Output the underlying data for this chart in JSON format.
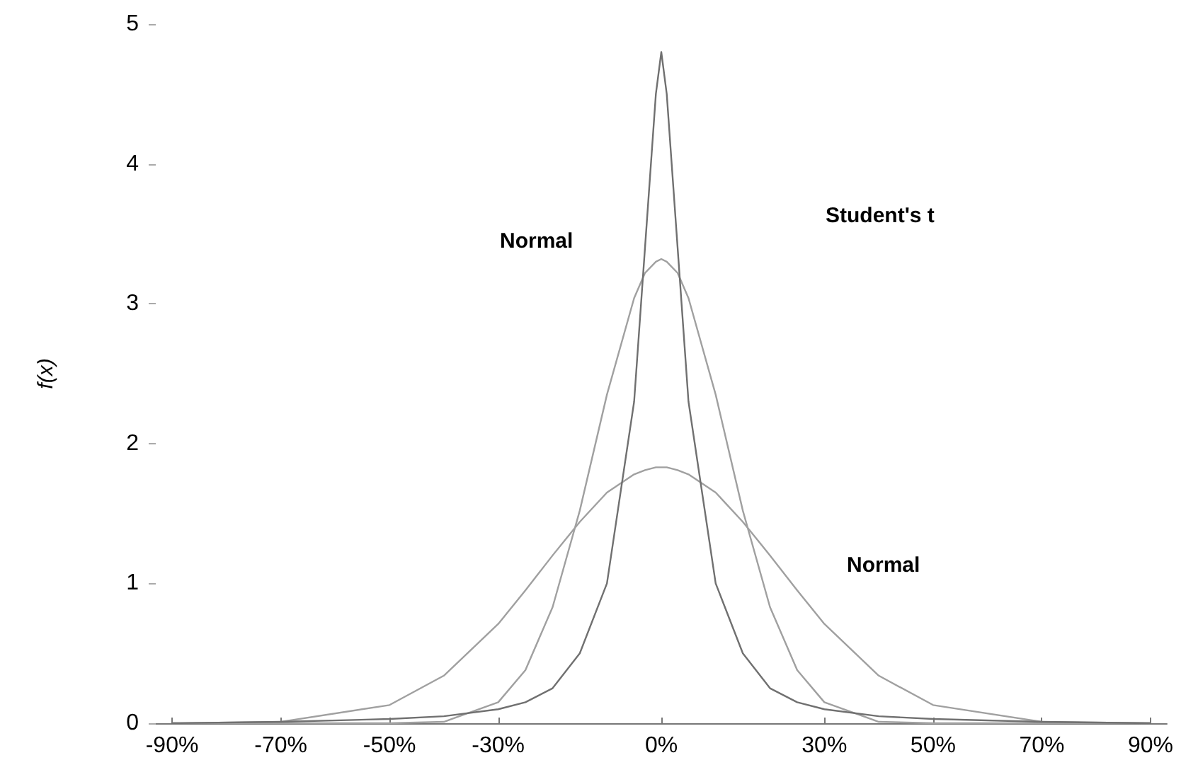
{
  "chart_data": {
    "type": "line",
    "ylabel": "f(x)",
    "x": [
      -90,
      -70,
      -50,
      -40,
      -30,
      -25,
      -20,
      -15,
      -10,
      -5,
      -3,
      -1,
      0,
      1,
      3,
      5,
      10,
      15,
      20,
      25,
      30,
      40,
      50,
      70,
      90
    ],
    "series": [
      {
        "color": "#a0a0a0",
        "values": [
          0,
          0.01,
          0.13,
          0.34,
          0.71,
          0.95,
          1.2,
          1.44,
          1.65,
          1.78,
          1.81,
          1.83,
          1.83,
          1.83,
          1.81,
          1.78,
          1.65,
          1.44,
          1.2,
          0.95,
          0.71,
          0.34,
          0.13,
          0.01,
          0
        ]
      },
      {
        "color": "#a0a0a0",
        "values": [
          0,
          0,
          0,
          0.01,
          0.15,
          0.38,
          0.83,
          1.52,
          2.35,
          3.04,
          3.22,
          3.3,
          3.32,
          3.3,
          3.22,
          3.04,
          2.35,
          1.52,
          0.83,
          0.38,
          0.15,
          0.01,
          0,
          0,
          0
        ]
      },
      {
        "color": "#707070",
        "values": [
          0,
          0.01,
          0.03,
          0.05,
          0.1,
          0.15,
          0.25,
          0.5,
          1,
          2.3,
          3.4,
          4.5,
          4.8,
          4.5,
          3.4,
          2.3,
          1,
          0.5,
          0.25,
          0.15,
          0.1,
          0.05,
          0.03,
          0.01,
          0
        ]
      }
    ],
    "xlim": [
      -93,
      93
    ],
    "xticks": [
      {
        "value": -90,
        "label": "-90%"
      },
      {
        "value": -70,
        "label": "-70%"
      },
      {
        "value": -50,
        "label": "-50%"
      },
      {
        "value": -30,
        "label": "-30%"
      },
      {
        "value": 0,
        "label": "0%"
      },
      {
        "value": 30,
        "label": "30%"
      },
      {
        "value": 50,
        "label": "50%"
      },
      {
        "value": 70,
        "label": "70%"
      },
      {
        "value": 90,
        "label": "90%"
      }
    ],
    "ylim": [
      0,
      5
    ],
    "yticks": [
      0,
      1,
      2,
      3,
      4,
      5
    ],
    "annotations": [
      "Student's t",
      "Normal",
      "Normal"
    ],
    "grid": false,
    "marker": "none",
    "line_style": "solid"
  }
}
